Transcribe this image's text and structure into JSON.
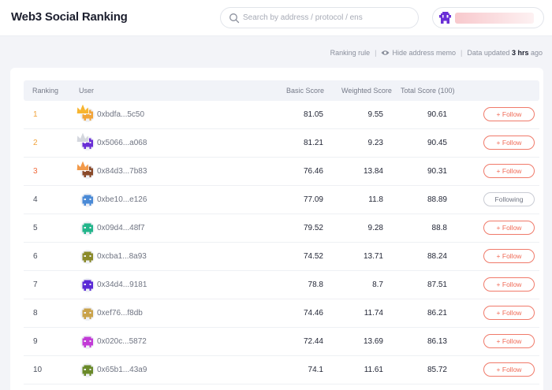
{
  "header": {
    "title": "Web3 Social Ranking",
    "search_placeholder": "Search by address / protocol / ens"
  },
  "meta": {
    "ranking_rule": "Ranking rule",
    "separator": "|",
    "hide_memo": "Hide address memo",
    "updated_prefix": "Data updated",
    "updated_value": "3 hrs",
    "updated_suffix": "ago"
  },
  "table": {
    "headers": {
      "ranking": "Ranking",
      "user": "User",
      "basic": "Basic Score",
      "weighted": "Weighted Score",
      "total": "Total Score (100)"
    },
    "rows": [
      {
        "rank": "1",
        "user": "0xbdfa...5c50",
        "basic": "81.05",
        "weighted": "9.55",
        "total": "90.61",
        "action": "+ Follow",
        "crown": "gold",
        "color": "#f2a53a"
      },
      {
        "rank": "2",
        "user": "0x5066...a068",
        "basic": "81.21",
        "weighted": "9.23",
        "total": "90.45",
        "action": "+ Follow",
        "crown": "silver",
        "color": "#6a2fd6"
      },
      {
        "rank": "3",
        "user": "0x84d3...7b83",
        "basic": "76.46",
        "weighted": "13.84",
        "total": "90.31",
        "action": "+ Follow",
        "crown": "bronze",
        "color": "#8a4a2a"
      },
      {
        "rank": "4",
        "user": "0xbe10...e126",
        "basic": "77.09",
        "weighted": "11.8",
        "total": "88.89",
        "action": "Following",
        "crown": "",
        "color": "#4a8ad6"
      },
      {
        "rank": "5",
        "user": "0x09d4...48f7",
        "basic": "79.52",
        "weighted": "9.28",
        "total": "88.8",
        "action": "+ Follow",
        "crown": "",
        "color": "#22b58a"
      },
      {
        "rank": "6",
        "user": "0xcba1...8a93",
        "basic": "74.52",
        "weighted": "13.71",
        "total": "88.24",
        "action": "+ Follow",
        "crown": "",
        "color": "#8a8a2a"
      },
      {
        "rank": "7",
        "user": "0x34d4...9181",
        "basic": "78.8",
        "weighted": "8.7",
        "total": "87.51",
        "action": "+ Follow",
        "crown": "",
        "color": "#5a2ad6"
      },
      {
        "rank": "8",
        "user": "0xef76...f8db",
        "basic": "74.46",
        "weighted": "11.74",
        "total": "86.21",
        "action": "+ Follow",
        "crown": "",
        "color": "#c9a24a"
      },
      {
        "rank": "9",
        "user": "0x020c...5872",
        "basic": "72.44",
        "weighted": "13.69",
        "total": "86.13",
        "action": "+ Follow",
        "crown": "",
        "color": "#c23ad6"
      },
      {
        "rank": "10",
        "user": "0x65b1...43a9",
        "basic": "74.1",
        "weighted": "11.61",
        "total": "85.72",
        "action": "+ Follow",
        "crown": "",
        "color": "#6a8a2a"
      }
    ]
  }
}
